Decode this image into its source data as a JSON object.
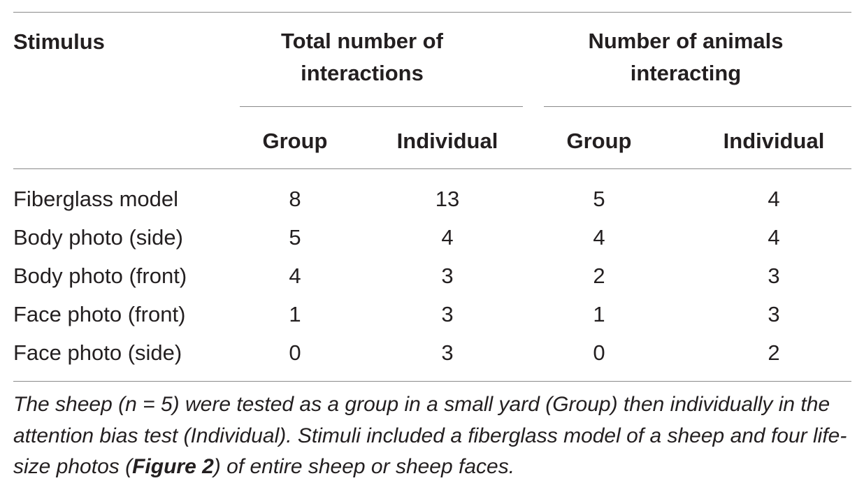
{
  "table": {
    "header": {
      "stimulus": "Stimulus",
      "group1": "Total number of interactions",
      "group2": "Number of animals interacting",
      "sub": [
        "Group",
        "Individual",
        "Group",
        "Individual"
      ]
    },
    "rows": [
      {
        "stimulus": "Fiberglass model",
        "values": [
          "8",
          "13",
          "5",
          "4"
        ]
      },
      {
        "stimulus": "Body photo (side)",
        "values": [
          "5",
          "4",
          "4",
          "4"
        ]
      },
      {
        "stimulus": "Body photo (front)",
        "values": [
          "4",
          "3",
          "2",
          "3"
        ]
      },
      {
        "stimulus": "Face photo (front)",
        "values": [
          "1",
          "3",
          "1",
          "3"
        ]
      },
      {
        "stimulus": "Face photo (side)",
        "values": [
          "0",
          "3",
          "0",
          "2"
        ]
      }
    ]
  },
  "caption": {
    "part1": "The sheep (n = 5) were tested as a group in a small yard (Group) then individually in the attention bias test (Individual). Stimuli included a fiberglass model of a sheep and four life-size photos (",
    "figure_ref": "Figure 2",
    "part2": ") of entire sheep or sheep faces."
  }
}
